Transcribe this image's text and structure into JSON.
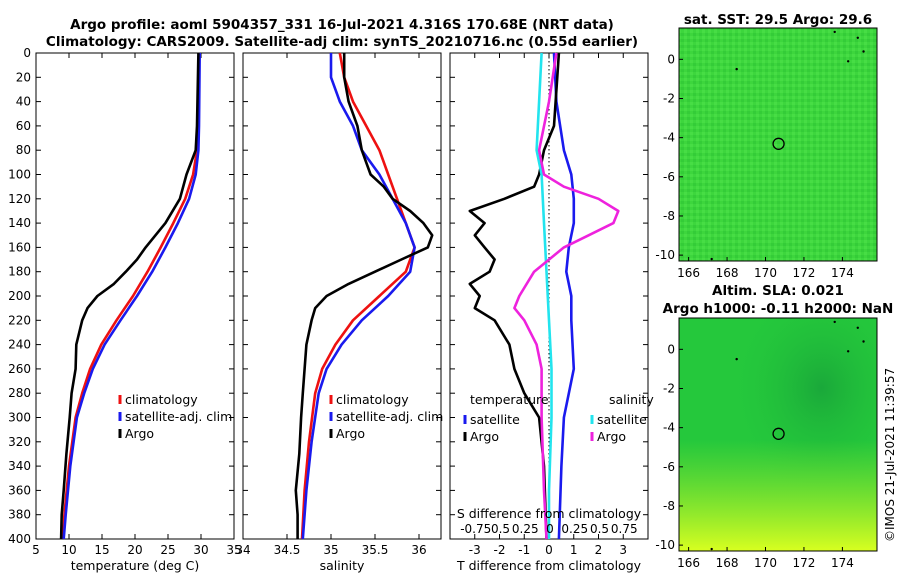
{
  "header": {
    "line1": "Argo profile: aoml 5904357_331 16-Jul-2021 4.316S 170.68E (NRT data)",
    "line2": "Climatology: CARS2009. Satellite-adj clim: synTS_20210716.nc (0.55d earlier)"
  },
  "watermark": "©IMOS 21-Jul-2021 11:39:57",
  "colors": {
    "climatology": "#ee1111",
    "satellite": "#1a1aee",
    "argo": "#000000",
    "sat_salinity": "#22e4ee",
    "argo_salinity": "#ee22dd"
  },
  "chart_data": [
    {
      "type": "line",
      "name": "temperature",
      "xlabel": "temperature (deg C)",
      "xlim": [
        5,
        35
      ],
      "ylim": [
        0,
        400
      ],
      "y_inverted": true,
      "xticks": [
        5,
        10,
        15,
        20,
        25,
        30,
        35
      ],
      "yticks": [
        0,
        20,
        40,
        60,
        80,
        100,
        120,
        140,
        160,
        180,
        200,
        220,
        240,
        260,
        280,
        300,
        320,
        340,
        360,
        380,
        400
      ],
      "legend": [
        "climatology",
        "satellite-adj. clim",
        "Argo"
      ],
      "series": [
        {
          "name": "climatology",
          "color": "#ee1111",
          "depth": [
            0,
            60,
            80,
            100,
            120,
            140,
            160,
            180,
            200,
            220,
            240,
            260,
            280,
            300,
            340,
            380,
            400
          ],
          "values": [
            29.7,
            29.6,
            29.4,
            28.8,
            27.6,
            25.8,
            23.9,
            21.9,
            19.7,
            17.2,
            14.9,
            13.2,
            12.0,
            11.0,
            10.0,
            9.3,
            9.1
          ]
        },
        {
          "name": "satellite-adj. clim",
          "color": "#1a1aee",
          "depth": [
            0,
            60,
            80,
            100,
            120,
            140,
            160,
            180,
            200,
            220,
            240,
            260,
            280,
            300,
            340,
            380,
            400
          ],
          "values": [
            29.8,
            29.7,
            29.6,
            29.2,
            28.2,
            26.5,
            24.6,
            22.6,
            20.3,
            17.8,
            15.4,
            13.6,
            12.3,
            11.2,
            10.2,
            9.5,
            9.2
          ]
        },
        {
          "name": "Argo",
          "color": "#000000",
          "depth": [
            0,
            60,
            80,
            100,
            120,
            140,
            160,
            170,
            180,
            190,
            200,
            210,
            220,
            240,
            260,
            280,
            300,
            330,
            360,
            380,
            400
          ],
          "values": [
            29.6,
            29.4,
            29.2,
            27.8,
            26.8,
            24.6,
            21.6,
            20.3,
            18.6,
            16.8,
            14.3,
            12.8,
            12.0,
            11.1,
            11.0,
            10.4,
            10.1,
            9.6,
            9.2,
            8.9,
            8.8
          ]
        }
      ]
    },
    {
      "type": "line",
      "name": "salinity",
      "xlabel": "salinity",
      "xlim": [
        34,
        36.25
      ],
      "ylim": [
        0,
        400
      ],
      "y_inverted": true,
      "xticks": [
        34,
        34.5,
        35,
        35.5,
        36
      ],
      "legend": [
        "climatology",
        "satellite-adj. clim",
        "Argo"
      ],
      "series": [
        {
          "name": "climatology",
          "color": "#ee1111",
          "depth": [
            0,
            20,
            40,
            60,
            80,
            100,
            120,
            140,
            160,
            180,
            200,
            220,
            240,
            260,
            280,
            320,
            360,
            400
          ],
          "values": [
            35.1,
            35.15,
            35.25,
            35.4,
            35.55,
            35.65,
            35.75,
            35.85,
            35.95,
            35.85,
            35.55,
            35.25,
            35.05,
            34.9,
            34.82,
            34.75,
            34.7,
            34.67
          ]
        },
        {
          "name": "satellite-adj. clim",
          "color": "#1a1aee",
          "depth": [
            0,
            20,
            40,
            60,
            80,
            100,
            120,
            140,
            160,
            180,
            200,
            220,
            240,
            260,
            280,
            320,
            360,
            400
          ],
          "values": [
            35.0,
            35.0,
            35.1,
            35.25,
            35.35,
            35.55,
            35.7,
            35.85,
            35.95,
            35.9,
            35.65,
            35.35,
            35.12,
            34.95,
            34.86,
            34.78,
            34.72,
            34.68
          ]
        },
        {
          "name": "Argo",
          "color": "#000000",
          "depth": [
            0,
            20,
            40,
            60,
            80,
            90,
            100,
            110,
            120,
            130,
            140,
            150,
            160,
            170,
            180,
            190,
            200,
            210,
            220,
            240,
            260,
            280,
            300,
            330,
            360,
            380,
            400
          ],
          "values": [
            35.15,
            35.15,
            35.2,
            35.3,
            35.35,
            35.4,
            35.45,
            35.6,
            35.7,
            35.9,
            36.05,
            36.15,
            36.1,
            35.8,
            35.5,
            35.2,
            34.95,
            34.82,
            34.78,
            34.72,
            34.7,
            34.68,
            34.66,
            34.64,
            34.6,
            34.62,
            34.62
          ]
        }
      ]
    },
    {
      "type": "line",
      "name": "difference",
      "xlabel": "T difference from climatology",
      "top_label": "S difference from climatology",
      "xlim": [
        -4,
        4
      ],
      "ylim": [
        0,
        400
      ],
      "y_inverted": true,
      "xticks": [
        -3,
        -2,
        -1,
        0,
        1,
        2,
        3
      ],
      "top_ticks": [
        "-0.75",
        "0.5",
        "0.25",
        "0",
        "0.25",
        "0.5",
        "0.75"
      ],
      "legend_groups": [
        {
          "title": "temperature",
          "items": [
            "satellite",
            "Argo"
          ]
        },
        {
          "title": "salinity",
          "items": [
            "satellite",
            "Argo"
          ]
        }
      ],
      "series": [
        {
          "name": "temperature satellite",
          "color": "#1a1aee",
          "depth": [
            0,
            40,
            80,
            100,
            120,
            140,
            160,
            180,
            200,
            220,
            260,
            300,
            340,
            400
          ],
          "values": [
            0.2,
            0.3,
            0.6,
            0.9,
            1.0,
            1.0,
            0.8,
            0.7,
            0.9,
            0.9,
            1.0,
            0.6,
            0.5,
            0.4
          ]
        },
        {
          "name": "temperature Argo",
          "color": "#000000",
          "depth": [
            0,
            60,
            80,
            100,
            110,
            120,
            130,
            140,
            150,
            160,
            170,
            180,
            190,
            200,
            210,
            220,
            240,
            260,
            280,
            300,
            340,
            400
          ],
          "values": [
            0.4,
            0.2,
            -0.2,
            -0.4,
            -0.6,
            -1.8,
            -3.2,
            -2.6,
            -3.0,
            -2.6,
            -2.2,
            -2.4,
            -3.2,
            -2.8,
            -3.0,
            -2.2,
            -1.6,
            -1.4,
            -1.0,
            -0.4,
            -0.2,
            -0.1
          ]
        },
        {
          "name": "salinity satellite",
          "color": "#22e4ee",
          "depth": [
            0,
            40,
            80,
            100,
            140,
            180,
            220,
            260,
            300,
            360,
            400
          ],
          "values": [
            -0.3,
            -0.4,
            -0.5,
            -0.3,
            -0.2,
            -0.1,
            0.0,
            0.1,
            0.1,
            0.0,
            0.0
          ]
        },
        {
          "name": "salinity Argo",
          "color": "#ee22dd",
          "depth": [
            0,
            40,
            80,
            100,
            110,
            120,
            130,
            140,
            150,
            160,
            180,
            200,
            210,
            220,
            240,
            260,
            300,
            360,
            400
          ],
          "values": [
            0.3,
            0.0,
            -0.4,
            -0.2,
            0.6,
            2.0,
            2.8,
            2.6,
            1.6,
            0.6,
            -0.6,
            -1.2,
            -1.4,
            -1.0,
            -0.5,
            -0.3,
            -0.3,
            -0.2,
            -0.1
          ]
        }
      ]
    },
    {
      "type": "heatmap",
      "name": "sst_map",
      "title": "sat. SST: 29.5 Argo: 29.6",
      "xlim": [
        165.5,
        175.8
      ],
      "ylim": [
        -10.3,
        1.6
      ],
      "xticks": [
        166,
        168,
        170,
        172,
        174
      ],
      "yticks": [
        0,
        -2,
        -4,
        -6,
        -8,
        -10
      ],
      "marker": {
        "lon": 170.68,
        "lat": -4.316,
        "label": "Argo position"
      }
    },
    {
      "type": "heatmap",
      "name": "sla_map",
      "title": "Altim. SLA: 0.021",
      "subtitle": "Argo h1000: -0.11 h2000: NaN",
      "xlim": [
        165.5,
        175.8
      ],
      "ylim": [
        -10.3,
        1.6
      ],
      "xticks": [
        166,
        168,
        170,
        172,
        174
      ],
      "yticks": [
        0,
        -2,
        -4,
        -6,
        -8,
        -10
      ],
      "marker": {
        "lon": 170.68,
        "lat": -4.316,
        "label": "Argo position"
      }
    }
  ]
}
